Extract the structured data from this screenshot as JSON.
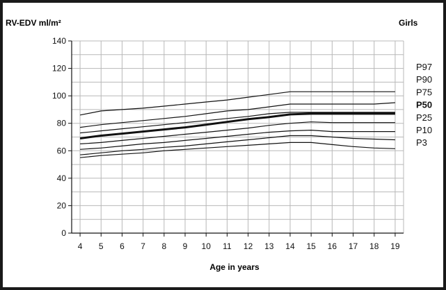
{
  "chart_data": {
    "type": "line",
    "title": "",
    "ylabel": "RV-EDV  ml/m²",
    "xlabel": "Age in years",
    "corner_label": "Girls",
    "xlim": [
      3.6,
      19.4
    ],
    "ylim": [
      0,
      140
    ],
    "xticks": [
      4,
      5,
      6,
      7,
      8,
      9,
      10,
      11,
      12,
      13,
      14,
      15,
      16,
      17,
      18,
      19
    ],
    "yticks": [
      0,
      20,
      40,
      60,
      80,
      100,
      120,
      140
    ],
    "grid": true,
    "x": [
      4,
      5,
      6,
      7,
      8,
      9,
      10,
      11,
      12,
      13,
      14,
      15,
      16,
      17,
      18,
      19
    ],
    "series": [
      {
        "name": "P97",
        "bold": false,
        "values": [
          86,
          89,
          90,
          91,
          92.5,
          94,
          95.5,
          97,
          99,
          101,
          103,
          103,
          103,
          103,
          103,
          103
        ]
      },
      {
        "name": "P90",
        "bold": false,
        "values": [
          77,
          79,
          80.5,
          82,
          83.5,
          85,
          87,
          89,
          90,
          92,
          94,
          94,
          94,
          94,
          94,
          95
        ]
      },
      {
        "name": "P75",
        "bold": false,
        "values": [
          73,
          74.5,
          76,
          77.5,
          79,
          80.5,
          82,
          83.5,
          85,
          87,
          88,
          88,
          88,
          88,
          88,
          88
        ]
      },
      {
        "name": "P50",
        "bold": true,
        "values": [
          69,
          71,
          72.5,
          74,
          75.5,
          77,
          79,
          81,
          83,
          84.5,
          86.5,
          87,
          87,
          87,
          87,
          87
        ]
      },
      {
        "name": "P25",
        "bold": false,
        "values": [
          65,
          66,
          67.5,
          69,
          70.5,
          72,
          73.5,
          75,
          76.5,
          78.5,
          80,
          81,
          80.5,
          80.5,
          80.5,
          80.5
        ]
      },
      {
        "name": "P10",
        "bold": false,
        "values": [
          61,
          62,
          63.5,
          65,
          66,
          67.5,
          69,
          70.5,
          72,
          73.5,
          74.5,
          75,
          74,
          74,
          74,
          74
        ]
      },
      {
        "name": "P3",
        "bold": false,
        "values": [
          57,
          58.5,
          60,
          61,
          62.5,
          63.5,
          65,
          66.5,
          68,
          69.5,
          71,
          71,
          70,
          69,
          68.5,
          68
        ]
      },
      {
        "name": "",
        "bold": false,
        "values": [
          55,
          56.5,
          57.5,
          58.5,
          60,
          61,
          62,
          63,
          64,
          65,
          66,
          66,
          64.5,
          63,
          62,
          61.5
        ]
      }
    ]
  }
}
